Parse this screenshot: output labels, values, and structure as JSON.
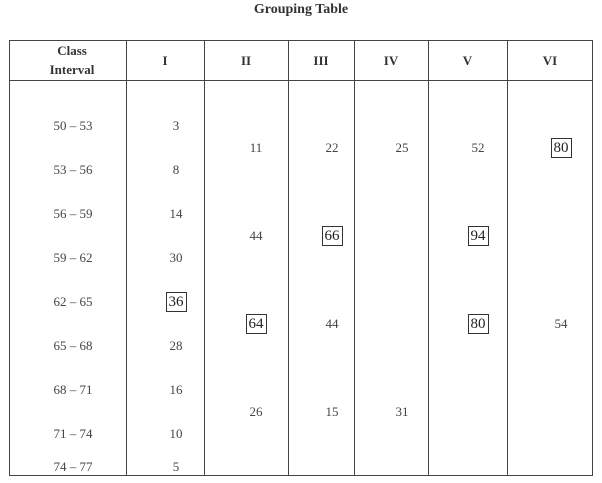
{
  "title": "Grouping Table",
  "headers": {
    "class_interval_line1": "Class",
    "class_interval_line2": "Interval",
    "col1": "I",
    "col2": "II",
    "col3": "III",
    "col4": "IV",
    "col5": "V",
    "col6": "VI"
  },
  "intervals": [
    "50 – 53",
    "53 – 56",
    "56 – 59",
    "59 – 62",
    "62 – 65",
    "65 – 68",
    "68 – 71",
    "71 – 74",
    "74 – 77"
  ],
  "col1": [
    "3",
    "8",
    "14",
    "30",
    "36",
    "28",
    "16",
    "10",
    "5"
  ],
  "col2": [
    "11",
    "44",
    "64",
    "26"
  ],
  "col3": [
    "22",
    "66",
    "44",
    "15"
  ],
  "col4": [
    "25",
    "31"
  ],
  "col5": [
    "52",
    "94",
    "80"
  ],
  "col6": [
    "80",
    "54"
  ]
}
